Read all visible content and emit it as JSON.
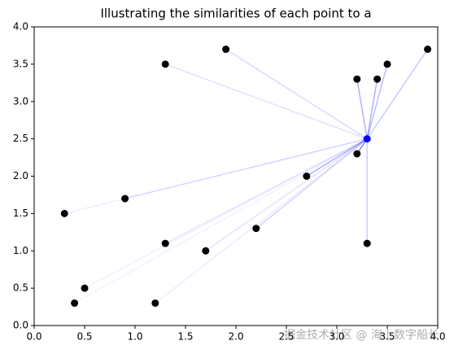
{
  "chart_data": {
    "type": "scatter",
    "title": "Illustrating the similarities of each point to a",
    "x": [
      1.9,
      1.3,
      3.2,
      3.4,
      3.5,
      3.9,
      3.2,
      2.7,
      0.9,
      0.3,
      2.2,
      1.3,
      1.7,
      3.3,
      0.5,
      0.4,
      1.2
    ],
    "y": [
      3.7,
      3.5,
      3.3,
      3.3,
      3.5,
      3.7,
      2.3,
      2.0,
      1.7,
      1.5,
      1.3,
      1.1,
      1.0,
      1.1,
      0.5,
      0.3,
      0.3
    ],
    "color": "#000000",
    "reference": {
      "x": 3.3,
      "y": 2.5,
      "color": "#0000ff"
    },
    "xlim": [
      0,
      4
    ],
    "ylim": [
      0,
      4
    ],
    "xticks": [
      {
        "value": 0,
        "label": "0.0"
      },
      {
        "value": 0.5,
        "label": "0.5"
      },
      {
        "value": 1,
        "label": "1.0"
      },
      {
        "value": 1.5,
        "label": "1.5"
      },
      {
        "value": 2,
        "label": "2.0"
      },
      {
        "value": 2.5,
        "label": "2.5"
      },
      {
        "value": 3,
        "label": "3.0"
      },
      {
        "value": 3.5,
        "label": "3.5"
      },
      {
        "value": 4,
        "label": "4.0"
      }
    ],
    "yticks": [
      {
        "value": 0,
        "label": "0.0"
      },
      {
        "value": 0.5,
        "label": "0.5"
      },
      {
        "value": 1,
        "label": "1.0"
      },
      {
        "value": 1.5,
        "label": "1.5"
      },
      {
        "value": 2,
        "label": "2.0"
      },
      {
        "value": 2.5,
        "label": "2.5"
      },
      {
        "value": 3,
        "label": "3.0"
      },
      {
        "value": 3.5,
        "label": "3.5"
      },
      {
        "value": 4,
        "label": "4.0"
      }
    ],
    "watermark": "掘金技术社区 @ 海上数字船长"
  }
}
